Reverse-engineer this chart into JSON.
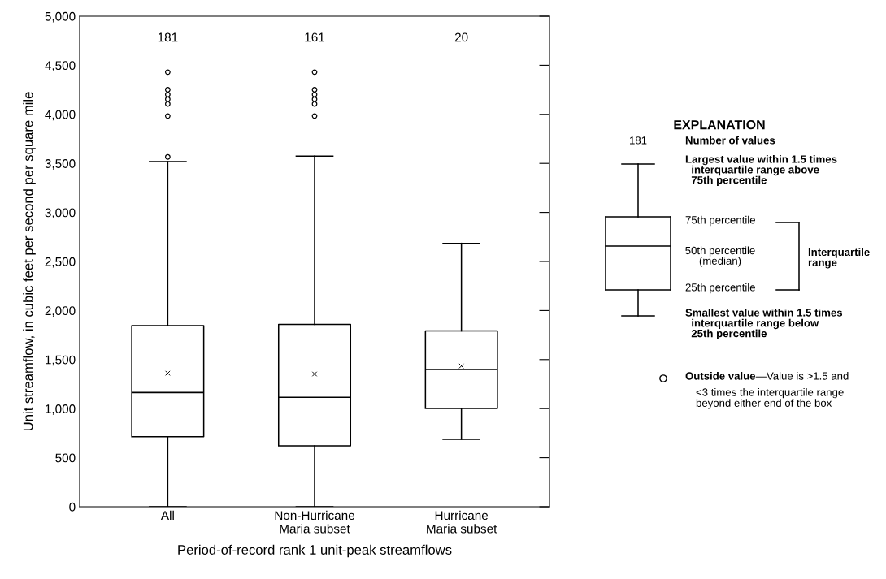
{
  "chart_data": {
    "type": "box",
    "xlabel": "Period-of-record rank 1 unit-peak streamflows",
    "ylabel": "Unit streamflow, in cubic feet per second per square mile",
    "categories": [
      "All",
      "Non-Hurricane\nMaria subset",
      "Hurricane\nMaria subset"
    ],
    "boxes": [
      {
        "low": 0,
        "q1": 714,
        "median": 1164,
        "q3": 1846,
        "high": 3518,
        "mean": 1361,
        "outliers": [
          3566,
          3983,
          4106,
          4154,
          4202,
          4251,
          4430
        ]
      },
      {
        "low": 0,
        "q1": 621,
        "median": 1116,
        "q3": 1859,
        "high": 3574,
        "mean": 1353,
        "outliers": [
          3983,
          4106,
          4154,
          4202,
          4251,
          4430
        ]
      },
      {
        "low": 688,
        "q1": 1001,
        "median": 1399,
        "q3": 1792,
        "high": 2685,
        "mean": 1435
      }
    ],
    "ylim": [
      0,
      5000
    ],
    "yticks": [
      0,
      500,
      {
        "value": 1000,
        "label": "1,000"
      },
      {
        "value": 1500,
        "label": "1,500"
      },
      {
        "value": 2000,
        "label": "2,000"
      },
      {
        "value": 2500,
        "label": "2,500"
      },
      {
        "value": 3000,
        "label": "3,000"
      },
      {
        "value": 3500,
        "label": "3,500"
      },
      {
        "value": 4000,
        "label": "4,000"
      },
      {
        "value": 4500,
        "label": "4,500"
      },
      {
        "value": 5000,
        "label": "5,000"
      }
    ],
    "grid": false,
    "annotations": [
      "181",
      "161",
      "20",
      "EXPLANATION",
      "181",
      "Number of values",
      "Largest value within 1.5 times\n  interquartile range above\n  75th percentile",
      "75th percentile",
      "50th percentile\n(median)",
      "25th percentile",
      "Interquartile\nrange",
      "Smallest value within 1.5 times\n  interquartile range below\n  25th percentile",
      "Outside value",
      "—Value is >1.5 and",
      "<3 times the interquartile range\nbeyond either end of the box"
    ]
  }
}
